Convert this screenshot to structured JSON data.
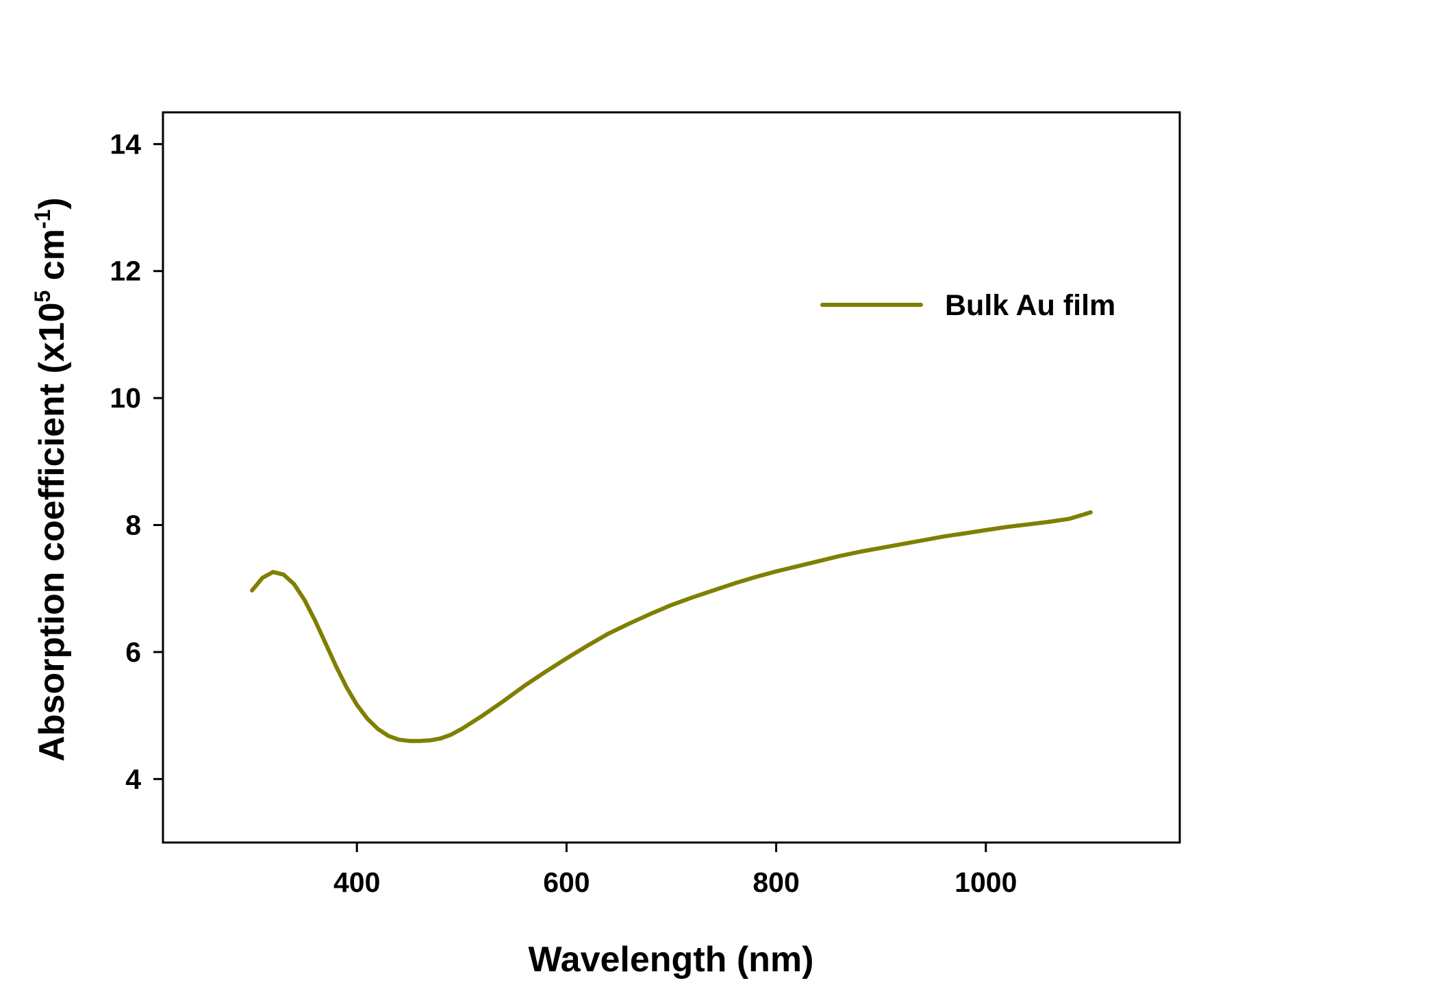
{
  "chart_data": {
    "type": "line",
    "title": "",
    "xlabel": "Wavelength (nm)",
    "ylabel": {
      "prefix": "Absorption coefficient (x10",
      "exp1": "5",
      "middle": " cm",
      "exp2": "-1",
      "suffix": ")"
    },
    "xlim": [
      215,
      1185
    ],
    "ylim": [
      3,
      14.5
    ],
    "x_ticks": [
      400,
      600,
      800,
      1000
    ],
    "y_ticks": [
      4,
      6,
      8,
      10,
      12,
      14
    ],
    "grid": false,
    "legend_position": "top-right",
    "series": [
      {
        "name": "Bulk Au film",
        "color": "#7f7f00",
        "points": [
          [
            300,
            6.97
          ],
          [
            310,
            7.17
          ],
          [
            320,
            7.26
          ],
          [
            330,
            7.22
          ],
          [
            340,
            7.07
          ],
          [
            350,
            6.82
          ],
          [
            360,
            6.5
          ],
          [
            370,
            6.14
          ],
          [
            380,
            5.78
          ],
          [
            390,
            5.45
          ],
          [
            400,
            5.17
          ],
          [
            410,
            4.95
          ],
          [
            420,
            4.79
          ],
          [
            430,
            4.68
          ],
          [
            440,
            4.62
          ],
          [
            450,
            4.6
          ],
          [
            460,
            4.6
          ],
          [
            470,
            4.61
          ],
          [
            480,
            4.64
          ],
          [
            490,
            4.7
          ],
          [
            500,
            4.79
          ],
          [
            520,
            5.0
          ],
          [
            540,
            5.23
          ],
          [
            560,
            5.47
          ],
          [
            580,
            5.69
          ],
          [
            600,
            5.9
          ],
          [
            620,
            6.1
          ],
          [
            640,
            6.29
          ],
          [
            660,
            6.45
          ],
          [
            680,
            6.6
          ],
          [
            700,
            6.74
          ],
          [
            720,
            6.86
          ],
          [
            740,
            6.97
          ],
          [
            760,
            7.08
          ],
          [
            780,
            7.18
          ],
          [
            800,
            7.27
          ],
          [
            820,
            7.35
          ],
          [
            840,
            7.43
          ],
          [
            860,
            7.51
          ],
          [
            880,
            7.58
          ],
          [
            900,
            7.64
          ],
          [
            920,
            7.7
          ],
          [
            940,
            7.76
          ],
          [
            960,
            7.82
          ],
          [
            980,
            7.87
          ],
          [
            1000,
            7.92
          ],
          [
            1020,
            7.97
          ],
          [
            1040,
            8.01
          ],
          [
            1060,
            8.05
          ],
          [
            1080,
            8.1
          ],
          [
            1100,
            8.2
          ]
        ]
      }
    ]
  }
}
